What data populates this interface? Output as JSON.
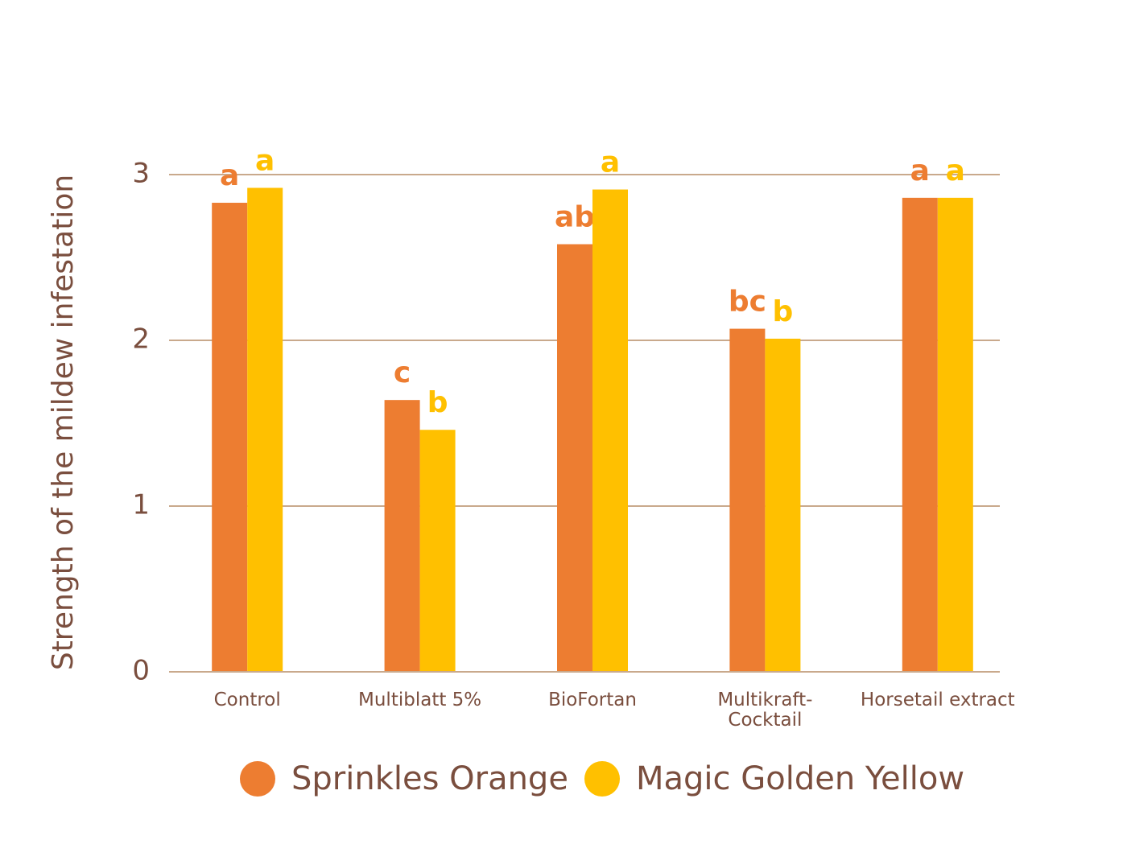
{
  "chart_data": {
    "type": "bar",
    "y_label": "Strength of the mildew infestation",
    "categories": [
      "Control",
      "Multiblatt 5%",
      "BioFortan",
      "Multikraft-Cocktail",
      "Horsetail extract"
    ],
    "series": [
      {
        "name": "Sprinkles Orange",
        "color": "#ED7D31",
        "values": [
          2.83,
          1.64,
          2.58,
          2.07,
          2.86
        ],
        "significance": [
          "a",
          "c",
          "ab",
          "bc",
          "a"
        ]
      },
      {
        "name": "Magic Golden Yellow",
        "color": "#FFC000",
        "values": [
          2.92,
          1.46,
          2.91,
          2.01,
          2.86
        ],
        "significance": [
          "a",
          "b",
          "a",
          "b",
          "a"
        ]
      }
    ],
    "ylim": [
      0,
      3
    ],
    "yticks": [
      0,
      1,
      2,
      3
    ],
    "grid": true
  }
}
